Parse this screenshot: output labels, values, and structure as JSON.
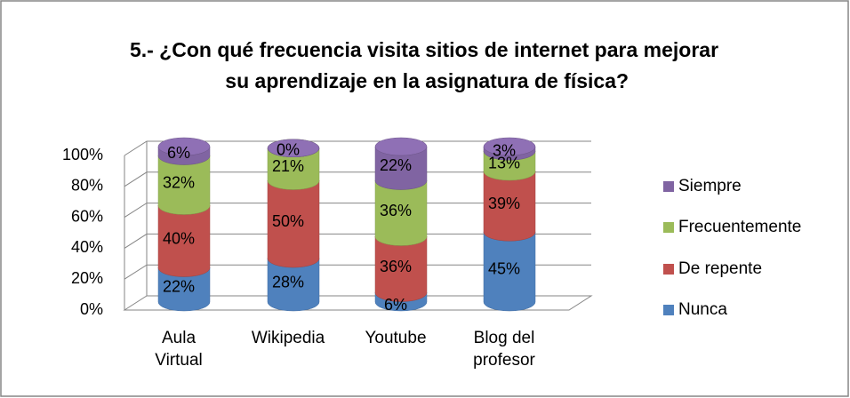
{
  "chart_data": {
    "type": "bar3d_stacked",
    "title": "5.- ¿Con qué frecuencia visita sitios de internet para mejorar su aprendizaje en la asignatura de física?",
    "categories": [
      "Aula Virtual",
      "Wikipedia",
      "Youtube",
      "Blog del profesor"
    ],
    "series": [
      {
        "name": "Nunca",
        "color": "#4f81bd",
        "values": [
          22,
          28,
          6,
          45
        ],
        "value_labels": [
          "22%",
          "28%",
          "6%",
          "45%"
        ]
      },
      {
        "name": "De repente",
        "color": "#c0504d",
        "values": [
          40,
          50,
          36,
          39
        ],
        "value_labels": [
          "40%",
          "50%",
          "36%",
          "39%"
        ]
      },
      {
        "name": "Frecuentemente",
        "color": "#9bbb59",
        "values": [
          32,
          21,
          36,
          13
        ],
        "value_labels": [
          "32%",
          "21%",
          "36%",
          "13%"
        ]
      },
      {
        "name": "Siempre",
        "color": "#8064a2",
        "values": [
          6,
          0,
          22,
          3
        ],
        "value_labels": [
          "6%",
          "0%",
          "22%",
          "3%"
        ]
      }
    ],
    "ylim": [
      0,
      100
    ],
    "yticks": [
      {
        "value": 0,
        "label": "0%"
      },
      {
        "value": 20,
        "label": "20%"
      },
      {
        "value": 40,
        "label": "40%"
      },
      {
        "value": 60,
        "label": "60%"
      },
      {
        "value": 80,
        "label": "80%"
      },
      {
        "value": 100,
        "label": "100%"
      }
    ],
    "grid": true,
    "legend": "right"
  }
}
